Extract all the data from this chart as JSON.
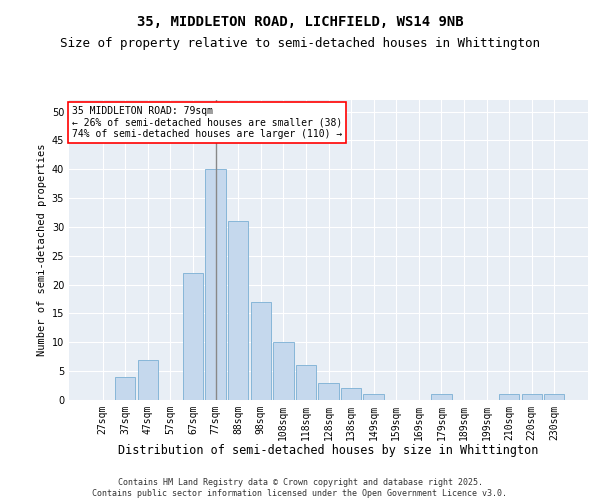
{
  "title_line1": "35, MIDDLETON ROAD, LICHFIELD, WS14 9NB",
  "title_line2": "Size of property relative to semi-detached houses in Whittington",
  "xlabel": "Distribution of semi-detached houses by size in Whittington",
  "ylabel": "Number of semi-detached properties",
  "categories": [
    "27sqm",
    "37sqm",
    "47sqm",
    "57sqm",
    "67sqm",
    "77sqm",
    "88sqm",
    "98sqm",
    "108sqm",
    "118sqm",
    "128sqm",
    "138sqm",
    "149sqm",
    "159sqm",
    "169sqm",
    "179sqm",
    "189sqm",
    "199sqm",
    "210sqm",
    "220sqm",
    "230sqm"
  ],
  "values": [
    0,
    4,
    7,
    0,
    22,
    40,
    31,
    17,
    10,
    6,
    3,
    2,
    1,
    0,
    0,
    1,
    0,
    0,
    1,
    1,
    1
  ],
  "bar_color": "#c5d8ed",
  "bar_edge_color": "#7aafd4",
  "highlight_line_color": "#888888",
  "annotation_text": "35 MIDDLETON ROAD: 79sqm\n← 26% of semi-detached houses are smaller (38)\n74% of semi-detached houses are larger (110) →",
  "annotation_box_color": "white",
  "annotation_box_edge_color": "red",
  "ylim": [
    0,
    52
  ],
  "yticks": [
    0,
    5,
    10,
    15,
    20,
    25,
    30,
    35,
    40,
    45,
    50
  ],
  "background_color": "#e8eef5",
  "grid_color": "white",
  "footer_text": "Contains HM Land Registry data © Crown copyright and database right 2025.\nContains public sector information licensed under the Open Government Licence v3.0.",
  "title_fontsize": 10,
  "subtitle_fontsize": 9,
  "xlabel_fontsize": 8.5,
  "ylabel_fontsize": 7.5,
  "tick_fontsize": 7,
  "annotation_fontsize": 7,
  "footer_fontsize": 6
}
